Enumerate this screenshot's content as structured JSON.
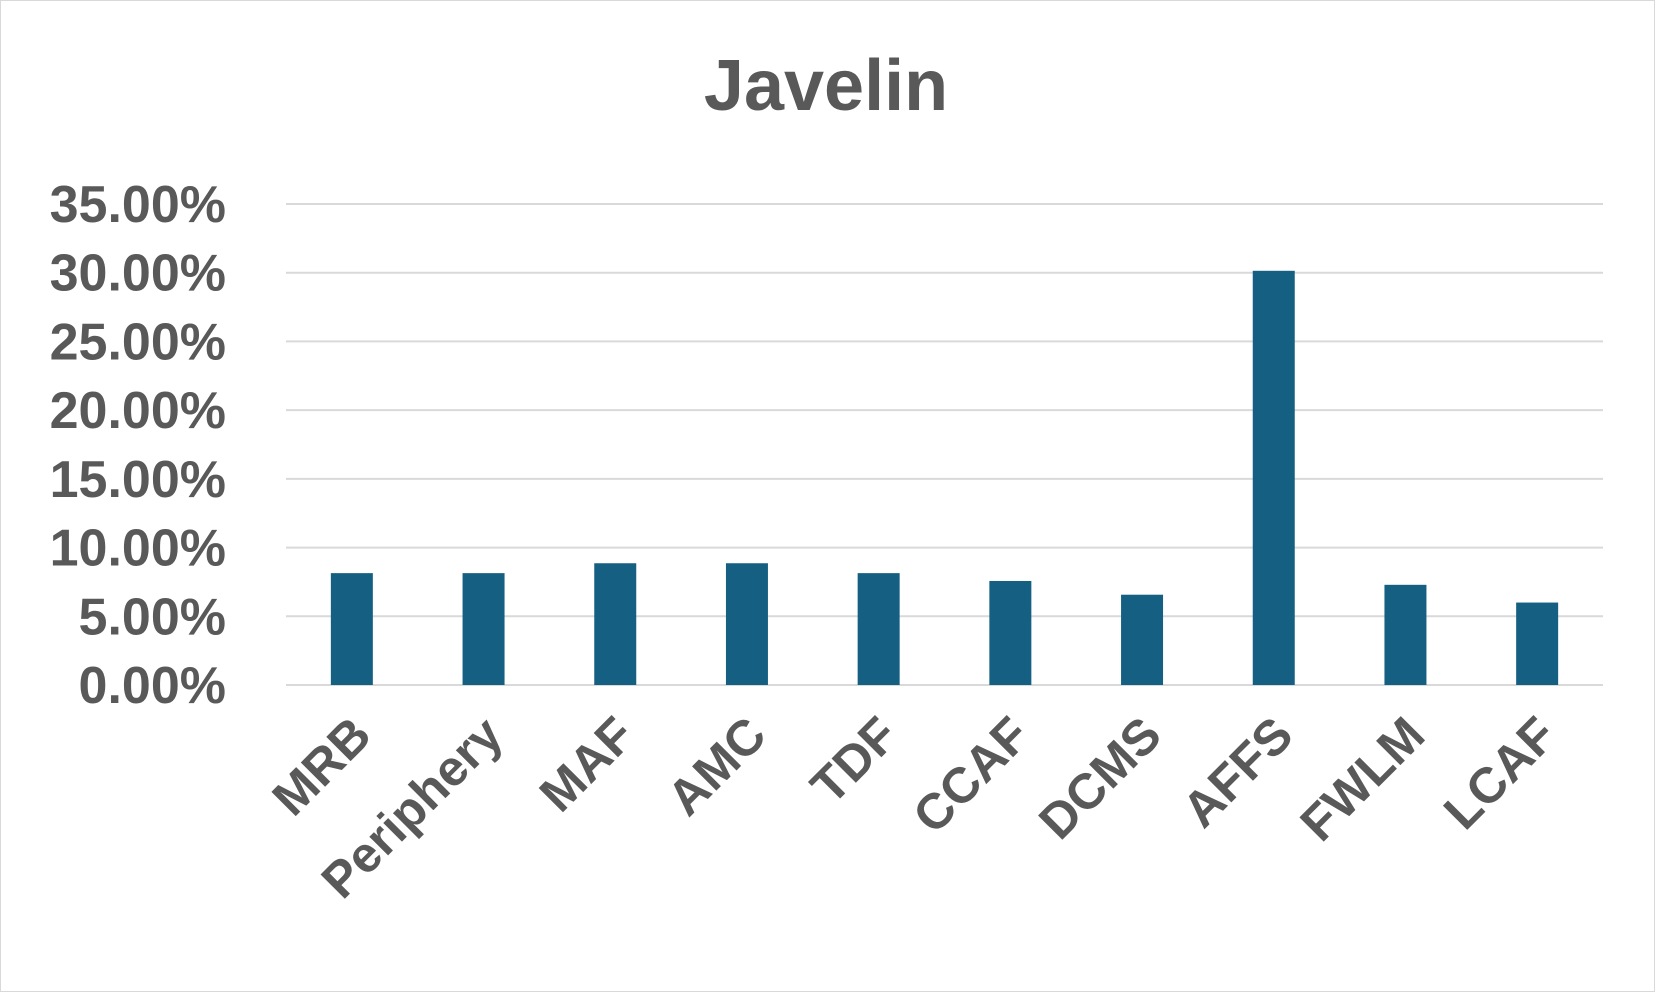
{
  "chart_data": {
    "type": "bar",
    "title": "Javelin",
    "categories": [
      "MRB",
      "Periphery",
      "MAF",
      "AMC",
      "TDF",
      "CCAF",
      "DCMS",
      "AFFS",
      "FWLM",
      "LCAF"
    ],
    "series": [
      {
        "values": [
          8.14,
          8.14,
          8.86,
          8.86,
          8.14,
          7.57,
          6.57,
          30.14,
          7.29,
          6.0
        ],
        "color": "#156082"
      }
    ],
    "y_ticks": [
      "0.00%",
      "5.00%",
      "10.00%",
      "15.00%",
      "20.00%",
      "25.00%",
      "30.00%",
      "35.00%"
    ],
    "ylim": [
      0,
      35
    ],
    "y_unit": "percent",
    "grid": true,
    "gridline_color": "#d9d9d9",
    "text_color": "#595959",
    "legend": "none"
  }
}
